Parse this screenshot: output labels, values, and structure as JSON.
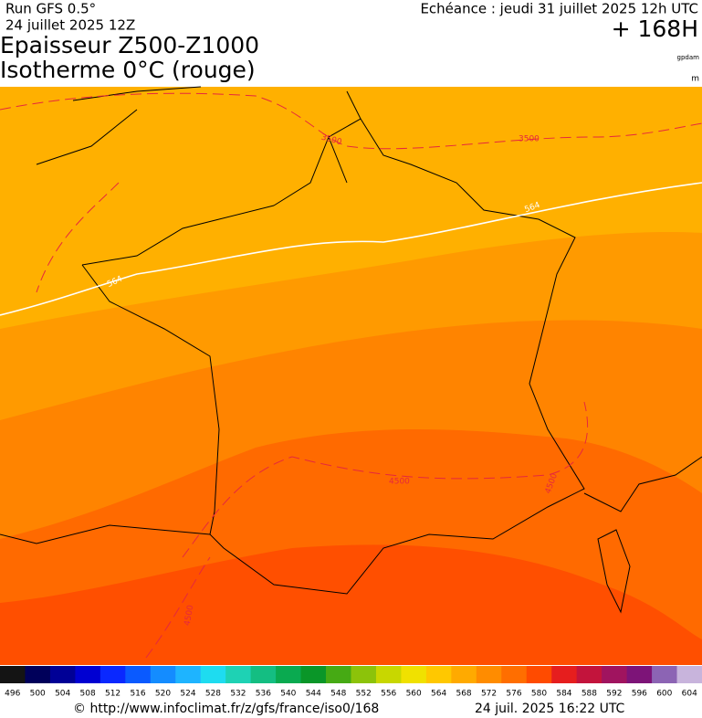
{
  "header": {
    "run": "Run GFS 0.5°",
    "run_date": "24 juillet 2025 12Z",
    "valid": "Echéance : jeudi 31 juillet 2025 12h UTC",
    "lead": "+ 168H",
    "title_1": "Epaisseur Z500-Z1000",
    "title_2": "Isotherme 0°C (rouge)",
    "unit_1": "gpdam",
    "unit_2": "m"
  },
  "contour_labels": {
    "iso0": [
      "3500",
      "3500",
      "4500",
      "4500",
      "4500"
    ],
    "thickness": [
      "564",
      "564"
    ]
  },
  "colorbar": {
    "values": [
      496,
      500,
      504,
      508,
      512,
      516,
      520,
      524,
      528,
      532,
      536,
      540,
      544,
      548,
      552,
      556,
      560,
      564,
      568,
      572,
      576,
      580,
      584,
      588,
      592,
      596,
      600,
      604
    ],
    "colors": [
      "#141414",
      "#00005a",
      "#000096",
      "#0000d2",
      "#0a28ff",
      "#0a5aff",
      "#148cff",
      "#1eb4ff",
      "#1edcf0",
      "#1ed2b4",
      "#14be82",
      "#0aaa50",
      "#0a9628",
      "#46aa14",
      "#8cc30a",
      "#c8d700",
      "#f0e100",
      "#ffc800",
      "#ffaa00",
      "#ff8c00",
      "#ff6e00",
      "#ff4b00",
      "#e61e1e",
      "#c3143c",
      "#a0145f",
      "#7d1478",
      "#8c64b4",
      "#c8b4dc"
    ]
  },
  "footer": {
    "source": "© http://www.infoclimat.fr/z/gfs/france/iso0/168",
    "generated": "24 juil. 2025 16:22 UTC"
  }
}
